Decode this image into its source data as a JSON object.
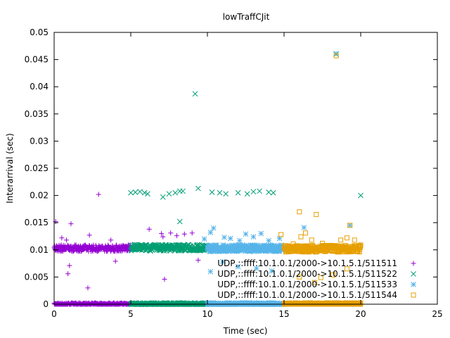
{
  "chart_data": {
    "type": "scatter",
    "title": "lowTraffCJit",
    "xlabel": "Time (sec)",
    "ylabel": "Interarrival (sec)",
    "xlim": [
      0,
      25
    ],
    "ylim": [
      0,
      0.05
    ],
    "x_ticks": [
      "0",
      "5",
      "10",
      "15",
      "20",
      "25"
    ],
    "y_ticks": [
      "0",
      "0.005",
      "0.01",
      "0.015",
      "0.02",
      "0.025",
      "0.03",
      "0.035",
      "0.04",
      "0.045",
      "0.05"
    ],
    "grid": false,
    "legend_position": "bottom-right",
    "series": [
      {
        "name": "UDP,::ffff:10.1.0.1/2000->10.1.5.1/511511",
        "marker": "plus",
        "color": "#9400d3",
        "band_x": [
          0,
          5
        ],
        "band_levels": [
          0.0,
          0.0103
        ],
        "points": [
          [
            0.1,
            0.0152
          ],
          [
            0.5,
            0.0122
          ],
          [
            0.8,
            0.0118
          ],
          [
            0.9,
            0.0056
          ],
          [
            1.0,
            0.0071
          ],
          [
            1.1,
            0.0148
          ],
          [
            2.2,
            0.003
          ],
          [
            2.3,
            0.0127
          ],
          [
            2.9,
            0.0202
          ],
          [
            3.7,
            0.0118
          ],
          [
            4.0,
            0.0079
          ],
          [
            6.2,
            0.0138
          ],
          [
            7.0,
            0.013
          ],
          [
            7.1,
            0.0124
          ],
          [
            7.2,
            0.0046
          ],
          [
            7.6,
            0.0131
          ],
          [
            8.0,
            0.0126
          ],
          [
            8.5,
            0.0129
          ],
          [
            9.0,
            0.0131
          ],
          [
            9.4,
            0.0081
          ]
        ]
      },
      {
        "name": "UDP,::ffff:10.1.0.1/2000->10.1.5.1/511522",
        "marker": "cross",
        "color": "#009e73",
        "band_x": [
          5,
          10
        ],
        "band_levels": [
          0.0,
          0.0104
        ],
        "points": [
          [
            5.0,
            0.0205
          ],
          [
            5.3,
            0.0206
          ],
          [
            5.6,
            0.0207
          ],
          [
            5.9,
            0.0205
          ],
          [
            6.1,
            0.0203
          ],
          [
            7.1,
            0.0197
          ],
          [
            7.5,
            0.0203
          ],
          [
            7.9,
            0.0205
          ],
          [
            8.2,
            0.0208
          ],
          [
            8.4,
            0.0208
          ],
          [
            9.2,
            0.0387
          ],
          [
            9.4,
            0.0213
          ],
          [
            10.3,
            0.0206
          ],
          [
            10.8,
            0.0205
          ],
          [
            11.2,
            0.0203
          ],
          [
            12.0,
            0.0205
          ],
          [
            12.6,
            0.0203
          ],
          [
            13.0,
            0.0207
          ],
          [
            13.4,
            0.0208
          ],
          [
            14.0,
            0.0206
          ],
          [
            14.3,
            0.0205
          ],
          [
            20.0,
            0.02
          ],
          [
            8.2,
            0.0152
          ],
          [
            18.4,
            0.046
          ]
        ]
      },
      {
        "name": "UDP,::ffff:10.1.0.1/2000->10.1.5.1/511533",
        "marker": "star",
        "color": "#56b4e9",
        "band_x": [
          10,
          15
        ],
        "band_levels": [
          0.0,
          0.0103
        ],
        "points": [
          [
            9.8,
            0.012
          ],
          [
            10.2,
            0.0132
          ],
          [
            10.4,
            0.014
          ],
          [
            11.1,
            0.0123
          ],
          [
            11.5,
            0.0121
          ],
          [
            12.1,
            0.0117
          ],
          [
            12.5,
            0.0129
          ],
          [
            13.0,
            0.0124
          ],
          [
            13.5,
            0.013
          ],
          [
            14.0,
            0.0117
          ],
          [
            14.7,
            0.0121
          ],
          [
            10.2,
            0.006
          ],
          [
            11.0,
            0.0078
          ],
          [
            12.0,
            0.0069
          ],
          [
            13.2,
            0.0066
          ],
          [
            14.2,
            0.0061
          ],
          [
            16.3,
            0.0141
          ],
          [
            17.6,
            0.0108
          ],
          [
            18.4,
            0.0461
          ],
          [
            19.3,
            0.0145
          ]
        ]
      },
      {
        "name": "UDP,::ffff:10.1.0.1/2000->10.1.5.1/511544",
        "marker": "square",
        "color": "#e69f00",
        "band_x": [
          15,
          20
        ],
        "band_levels": [
          0.0,
          0.0102
        ],
        "points": [
          [
            14.8,
            0.0128
          ],
          [
            15.6,
            0.0111
          ],
          [
            16.0,
            0.017
          ],
          [
            16.1,
            0.0124
          ],
          [
            16.4,
            0.0131
          ],
          [
            16.8,
            0.0118
          ],
          [
            17.1,
            0.0165
          ],
          [
            17.5,
            0.0112
          ],
          [
            18.0,
            0.0107
          ],
          [
            18.4,
            0.0457
          ],
          [
            18.7,
            0.0118
          ],
          [
            19.1,
            0.0122
          ],
          [
            19.3,
            0.0145
          ],
          [
            19.6,
            0.0118
          ],
          [
            20.0,
            0.0109
          ],
          [
            16.0,
            0.005
          ],
          [
            17.4,
            0.0049
          ],
          [
            18.2,
            0.0054
          ],
          [
            19.1,
            0.0065
          ],
          [
            17.0,
            0.004
          ]
        ]
      }
    ]
  }
}
